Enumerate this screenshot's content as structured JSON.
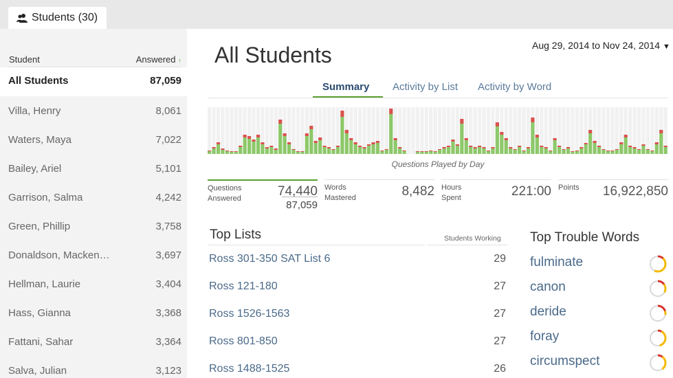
{
  "tab": {
    "label": "Students (30)"
  },
  "sidebar": {
    "header_student": "Student",
    "header_answered": "Answered",
    "sort_arrow": "↑",
    "all": {
      "name": "All Students",
      "value": "87,059"
    },
    "students": [
      {
        "name": "Villa, Henry",
        "value": "8,061"
      },
      {
        "name": "Waters, Maya",
        "value": "7,022"
      },
      {
        "name": "Bailey, Ariel",
        "value": "5,101"
      },
      {
        "name": "Garrison, Salma",
        "value": "4,242"
      },
      {
        "name": "Green, Phillip",
        "value": "3,758"
      },
      {
        "name": "Donaldson, Macken…",
        "value": "3,697"
      },
      {
        "name": "Hellman, Laurie",
        "value": "3,404"
      },
      {
        "name": "Hass, Gianna",
        "value": "3,368"
      },
      {
        "name": "Fattani, Sahar",
        "value": "3,364"
      },
      {
        "name": "Salva, Julian",
        "value": "3,123"
      }
    ]
  },
  "main": {
    "title": "All Students",
    "date_range": "Aug 29, 2014 to Nov 24, 2014",
    "tabs": [
      {
        "label": "Summary",
        "active": true
      },
      {
        "label": "Activity by List",
        "active": false
      },
      {
        "label": "Activity by Word",
        "active": false
      }
    ],
    "chart_caption": "Questions Played by Day",
    "stats": {
      "questions_label": "Questions\nAnswered",
      "questions_correct": "74,440",
      "questions_total": "87,059",
      "words_label": "Words\nMastered",
      "words_value": "8,482",
      "hours_label": "Hours\nSpent",
      "hours_value": "221:00",
      "points_label": "Points",
      "points_value": "16,922,850"
    },
    "top_lists": {
      "title": "Top Lists",
      "column": "Students Working",
      "items": [
        {
          "name": "Ross 301-350 SAT List 6",
          "count": "29"
        },
        {
          "name": "Ross 121-180",
          "count": "27"
        },
        {
          "name": "Ross 1526-1563",
          "count": "27"
        },
        {
          "name": "Ross 801-850",
          "count": "27"
        },
        {
          "name": "Ross 1488-1525",
          "count": "26"
        }
      ]
    },
    "trouble_words": {
      "title": "Top Trouble Words",
      "items": [
        {
          "word": "fulminate",
          "red": 0.12,
          "yellow": 0.45
        },
        {
          "word": "canon",
          "red": 0.15,
          "yellow": 0.18
        },
        {
          "word": "deride",
          "red": 0.2,
          "yellow": 0.08
        },
        {
          "word": "foray",
          "red": 0.08,
          "yellow": 0.38
        },
        {
          "word": "circumspect",
          "red": 0.1,
          "yellow": 0.3
        }
      ]
    }
  },
  "chart_data": {
    "type": "bar",
    "title": "",
    "xlabel": "Questions Played by Day",
    "ylabel": "",
    "colors": {
      "correct": "#8dc86a",
      "incorrect": "#d9534f",
      "background": "#f1f1f1"
    },
    "series": [
      {
        "values": [
          4,
          8,
          14,
          6,
          4,
          3,
          3,
          10,
          24,
          22,
          18,
          24,
          14,
          8,
          10,
          6,
          44,
          26,
          14,
          6,
          3,
          3,
          26,
          36,
          16,
          20,
          10,
          8,
          6,
          10,
          54,
          30,
          20,
          14,
          10,
          8,
          12,
          14,
          16,
          4,
          6,
          58,
          20,
          8,
          4,
          0,
          0,
          3,
          3,
          3,
          4,
          3,
          6,
          8,
          10,
          18,
          12,
          44,
          20,
          10,
          8,
          10,
          8,
          4,
          8,
          40,
          28,
          20,
          8,
          6,
          10,
          4,
          8,
          46,
          24,
          10,
          8,
          4,
          20,
          10,
          6,
          8,
          3,
          4,
          8,
          14,
          30,
          16,
          10,
          6,
          4,
          4,
          6,
          14,
          24,
          10,
          8,
          6,
          12,
          6,
          4,
          14,
          30,
          10
        ]
      },
      {
        "values": [
          1,
          2,
          3,
          2,
          1,
          1,
          1,
          2,
          4,
          4,
          3,
          4,
          3,
          2,
          2,
          2,
          6,
          4,
          3,
          1,
          1,
          1,
          4,
          5,
          3,
          4,
          2,
          2,
          1,
          2,
          9,
          5,
          3,
          3,
          2,
          2,
          2,
          3,
          3,
          1,
          1,
          8,
          3,
          2,
          1,
          0,
          0,
          1,
          1,
          1,
          1,
          1,
          1,
          2,
          2,
          3,
          2,
          7,
          3,
          2,
          2,
          2,
          2,
          1,
          2,
          6,
          4,
          3,
          2,
          1,
          2,
          1,
          2,
          7,
          4,
          2,
          2,
          1,
          3,
          2,
          1,
          2,
          1,
          1,
          2,
          2,
          5,
          3,
          2,
          1,
          1,
          1,
          1,
          3,
          4,
          2,
          2,
          1,
          2,
          1,
          1,
          3,
          5,
          2
        ]
      }
    ]
  }
}
